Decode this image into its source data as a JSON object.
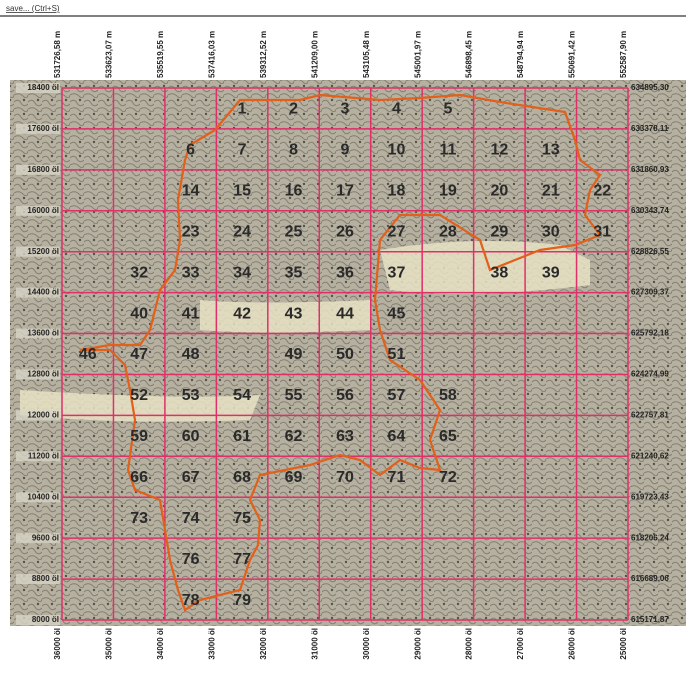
{
  "toolbar": {
    "hint": "save... (Ctrl+S)"
  },
  "top_labels": [
    "531726,58 m",
    "533623,07 m",
    "535519,55 m",
    "537416,03 m",
    "539312,52 m",
    "541209,00 m",
    "543105,48 m",
    "545001,97 m",
    "546898,45 m",
    "548794,94 m",
    "550691,42 m",
    "552587,90 m"
  ],
  "bottom_labels": [
    "36000 öl",
    "35000 öl",
    "34000 öl",
    "33000 öl",
    "32000 öl",
    "31000 öl",
    "30000 öl",
    "29000 öl",
    "28000 öl",
    "27000 öl",
    "26000 öl",
    "25000 öl"
  ],
  "left_labels": [
    "18400 öl",
    "17600 öl",
    "16800 öl",
    "16000 öl",
    "15200 öl",
    "14400 öl",
    "13600 öl",
    "12800 öl",
    "12000 öl",
    "11200 öl",
    "10400 öl",
    "9600 öl",
    "8800 öl",
    "8000 öl"
  ],
  "right_labels": [
    "634895,30",
    "633378,11",
    "631860,93",
    "630343,74",
    "628826,55",
    "627309,37",
    "625792,18",
    "624274,99",
    "622757,81",
    "621240,62",
    "619723,43",
    "618206,24",
    "616689,06",
    "615171,87"
  ],
  "grid": {
    "rows": [
      [
        null,
        null,
        null,
        "1",
        "2",
        "3",
        "4",
        "5",
        null,
        null,
        null
      ],
      [
        null,
        null,
        "6",
        "7",
        "8",
        "9",
        "10",
        "11",
        "12",
        "13",
        null
      ],
      [
        null,
        null,
        "14",
        "15",
        "16",
        "17",
        "18",
        "19",
        "20",
        "21",
        "22"
      ],
      [
        null,
        null,
        "23",
        "24",
        "25",
        "26",
        "27",
        "28",
        "29",
        "30",
        "31"
      ],
      [
        null,
        "32",
        "33",
        "34",
        "35",
        "36",
        "37",
        null,
        "38",
        "39",
        null
      ],
      [
        null,
        "40",
        "41",
        "42",
        "43",
        "44",
        "45",
        null,
        null,
        null,
        null
      ],
      [
        "46",
        "47",
        "48",
        null,
        "49",
        "50",
        "51",
        null,
        null,
        null,
        null
      ],
      [
        null,
        "52",
        "53",
        "54",
        "55",
        "56",
        "57",
        "58",
        null,
        null,
        null
      ],
      [
        null,
        "59",
        "60",
        "61",
        "62",
        "63",
        "64",
        "65",
        null,
        null,
        null
      ],
      [
        null,
        "66",
        "67",
        "68",
        "69",
        "70",
        "71",
        "72",
        null,
        null,
        null
      ],
      [
        null,
        "73",
        "74",
        "75",
        null,
        null,
        null,
        null,
        null,
        null,
        null
      ],
      [
        null,
        null,
        "76",
        "77",
        null,
        null,
        null,
        null,
        null,
        null,
        null
      ],
      [
        null,
        null,
        "78",
        "79",
        null,
        null,
        null,
        null,
        null,
        null,
        null
      ]
    ]
  }
}
